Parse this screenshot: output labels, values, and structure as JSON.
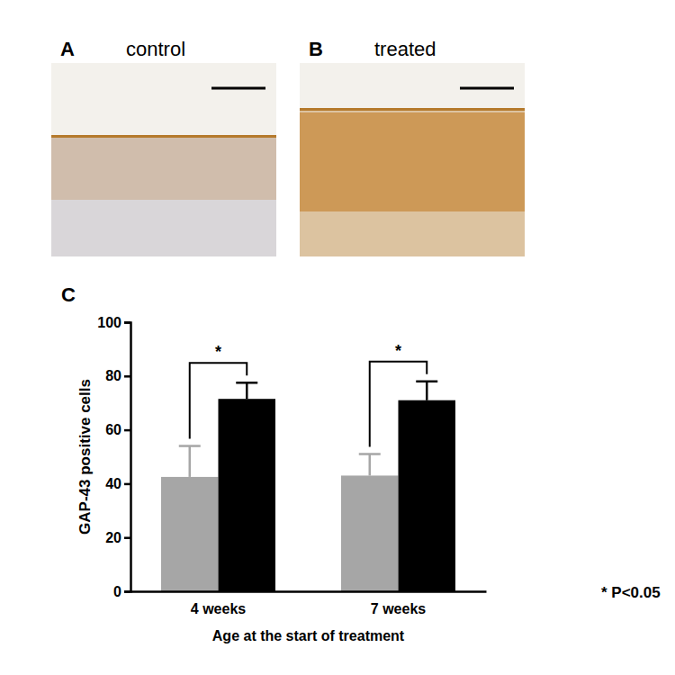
{
  "figure": {
    "panels": [
      {
        "letter": "A",
        "label": "control"
      },
      {
        "letter": "B",
        "label": "treated"
      }
    ]
  },
  "chart_data": {
    "panel": "C",
    "type": "bar",
    "x_label": "Age at the start of treatment",
    "y_label": "GAP-43 positive cells",
    "categories": [
      "4 weeks",
      "7 weeks"
    ],
    "series": [
      {
        "color": "#a6a6a6",
        "values": [
          42.5,
          43
        ],
        "errors": [
          11.5,
          8
        ]
      },
      {
        "color": "#000000",
        "values": [
          71.5,
          71
        ],
        "errors": [
          6,
          7
        ]
      }
    ],
    "ylim": [
      0,
      100
    ],
    "yticks": [
      0,
      20,
      40,
      60,
      80,
      100
    ],
    "significance": [
      {
        "category": 0,
        "label": "*"
      },
      {
        "category": 1,
        "label": "*"
      }
    ],
    "note": "* P<0.05"
  }
}
